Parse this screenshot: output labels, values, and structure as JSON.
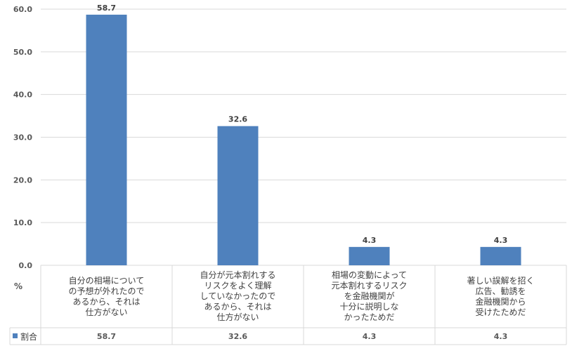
{
  "chart_data": {
    "type": "bar",
    "categories": [
      "自分の相場についての予想が外れたのであるから、それは仕方がない",
      "自分が元本割れするリスクをよく理解していなかったのであるから、それは仕方がない",
      "相場の変動によって元本割れするリスクを金融機関が十分に説明しなかったためだ",
      "著しい誤解を招く広告、勧誘を金融機関から受けたためだ"
    ],
    "category_lines": [
      "自分の相場について\nの予想が外れたので\nあるから、それは\n仕方がない",
      "自分が元本割れする\nリスクをよく理解\nしていなかったので\nあるから、それは\n仕方がない",
      "相場の変動によって\n元本割れするリスク\nを金融機関が\n十分に説明しな\nかったためだ",
      "著しい誤解を招く\n広告、勧誘を\n金融機関から\n受けたためだ"
    ],
    "series": [
      {
        "name": "割合",
        "values": [
          58.7,
          32.6,
          4.3,
          4.3
        ],
        "labels": [
          "58.7",
          "32.6",
          "4.3",
          "4.3"
        ]
      }
    ],
    "ylabel": "%",
    "ylim": [
      0,
      60
    ],
    "yticks": [
      "0.0",
      "10.0",
      "20.0",
      "30.0",
      "40.0",
      "50.0",
      "60.0"
    ],
    "grid": true,
    "legend": "data-table",
    "color": "#4f81bd"
  }
}
